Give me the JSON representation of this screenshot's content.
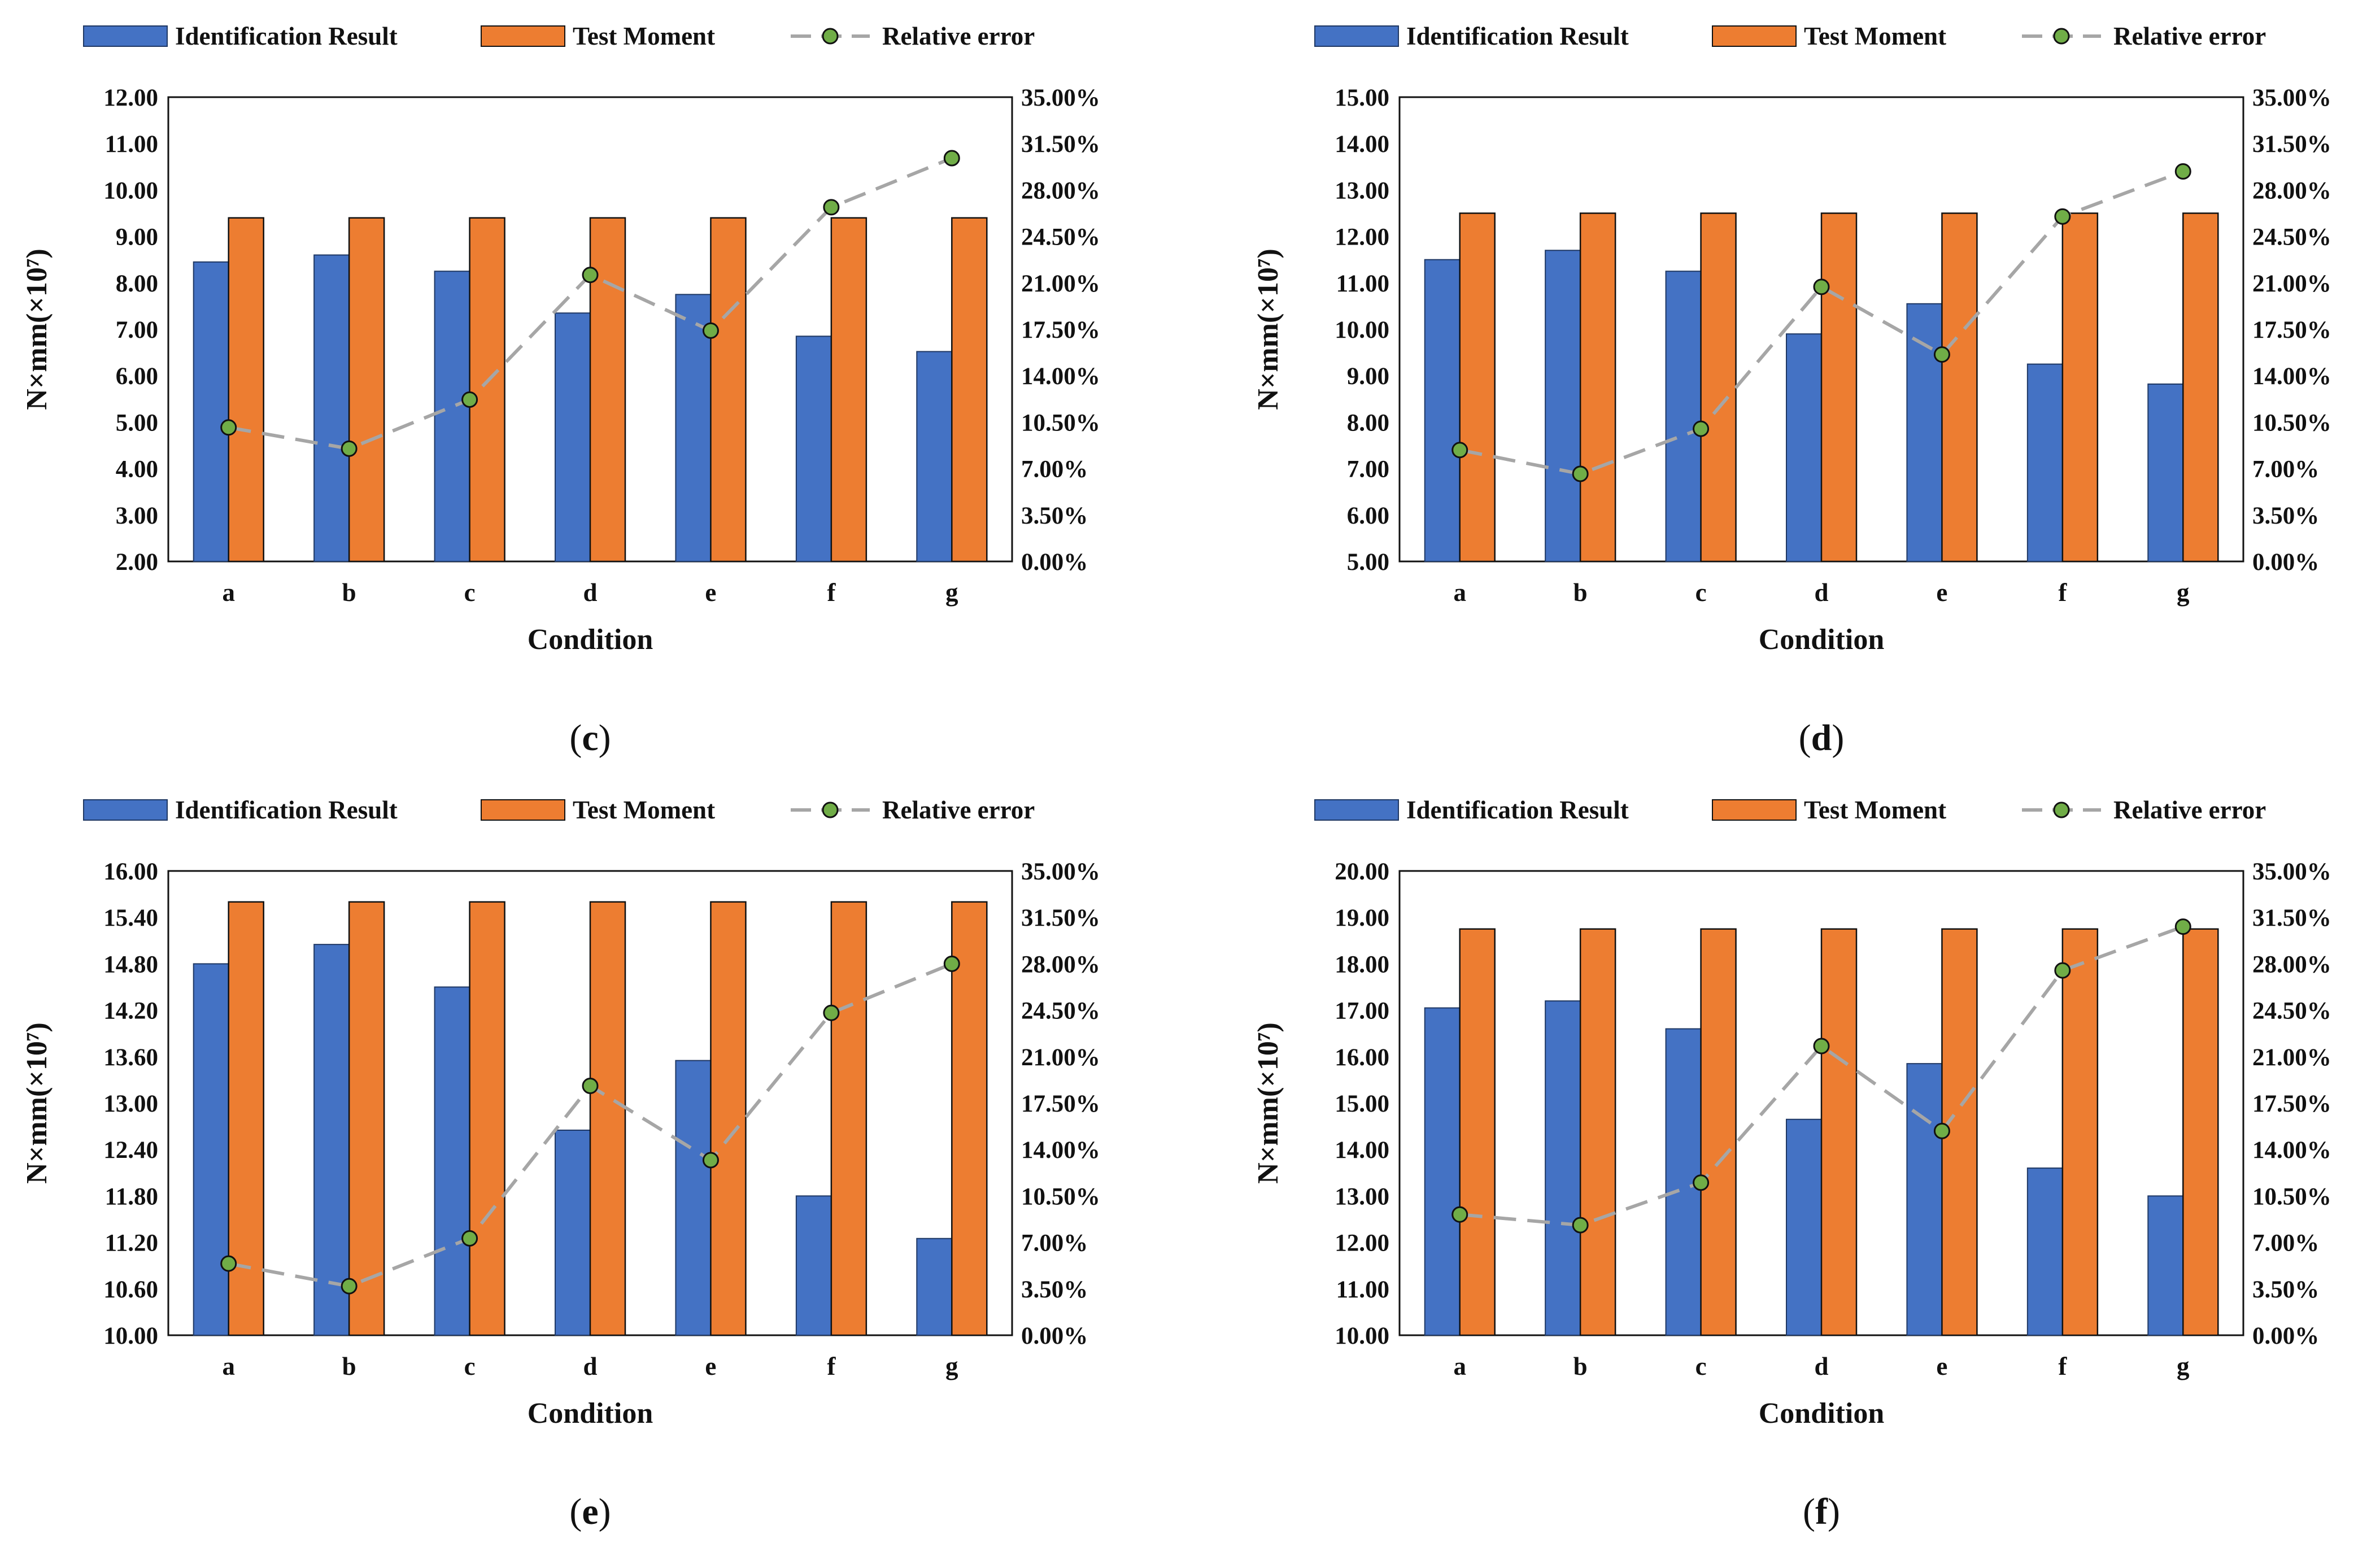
{
  "legend": {
    "series1": "Identification Result",
    "series2": "Test Moment",
    "series3": "Relative error"
  },
  "colors": {
    "identification": "#4472C4",
    "test": "#ED7D31",
    "error_line": "#A6A6A6",
    "error_marker": "#70AD47"
  },
  "chart_data": [
    {
      "type": "bar",
      "panel_label": "c",
      "categories": [
        "a",
        "b",
        "c",
        "d",
        "e",
        "f",
        "g"
      ],
      "series": [
        {
          "name": "Identification Result",
          "values": [
            8.45,
            8.6,
            8.25,
            7.35,
            7.75,
            6.85,
            6.52
          ]
        },
        {
          "name": "Test Moment",
          "values": [
            9.4,
            9.4,
            9.4,
            9.4,
            9.4,
            9.4,
            9.4
          ]
        },
        {
          "name": "Relative error",
          "type": "line",
          "axis": "right",
          "values": [
            10.1,
            8.5,
            12.2,
            21.6,
            17.4,
            26.7,
            30.4
          ]
        }
      ],
      "xlabel": "Condition",
      "ylabel": "N×mm(×10⁷)",
      "ylim": [
        2,
        12
      ],
      "yticks": [
        "12.00",
        "11.00",
        "10.00",
        "9.00",
        "8.00",
        "7.00",
        "6.00",
        "5.00",
        "4.00",
        "3.00",
        "2.00"
      ],
      "y2lim": [
        0,
        35
      ],
      "y2ticks": [
        "35.00%",
        "31.50%",
        "28.00%",
        "24.50%",
        "21.00%",
        "17.50%",
        "14.00%",
        "10.50%",
        "7.00%",
        "3.50%",
        "0.00%"
      ]
    },
    {
      "type": "bar",
      "panel_label": "d",
      "categories": [
        "a",
        "b",
        "c",
        "d",
        "e",
        "f",
        "g"
      ],
      "series": [
        {
          "name": "Identification Result",
          "values": [
            11.5,
            11.7,
            11.25,
            9.9,
            10.55,
            9.25,
            8.82
          ]
        },
        {
          "name": "Test Moment",
          "values": [
            12.5,
            12.5,
            12.5,
            12.5,
            12.5,
            12.5,
            12.5
          ]
        },
        {
          "name": "Relative error",
          "type": "line",
          "axis": "right",
          "values": [
            8.4,
            6.6,
            10.0,
            20.7,
            15.6,
            26.0,
            29.4
          ]
        }
      ],
      "xlabel": "Condition",
      "ylabel": "N×mm(×10⁷)",
      "ylim": [
        5,
        15
      ],
      "yticks": [
        "15.00",
        "14.00",
        "13.00",
        "12.00",
        "11.00",
        "10.00",
        "9.00",
        "8.00",
        "7.00",
        "6.00",
        "5.00"
      ],
      "y2lim": [
        0,
        35
      ],
      "y2ticks": [
        "35.00%",
        "31.50%",
        "28.00%",
        "24.50%",
        "21.00%",
        "17.50%",
        "14.00%",
        "10.50%",
        "7.00%",
        "3.50%",
        "0.00%"
      ]
    },
    {
      "type": "bar",
      "panel_label": "e",
      "categories": [
        "a",
        "b",
        "c",
        "d",
        "e",
        "f",
        "g"
      ],
      "series": [
        {
          "name": "Identification Result",
          "values": [
            14.8,
            15.05,
            14.5,
            12.65,
            13.55,
            11.8,
            11.25
          ]
        },
        {
          "name": "Test Moment",
          "values": [
            15.6,
            15.6,
            15.6,
            15.6,
            15.6,
            15.6,
            15.6
          ]
        },
        {
          "name": "Relative error",
          "type": "line",
          "axis": "right",
          "values": [
            5.4,
            3.7,
            7.3,
            18.8,
            13.2,
            24.3,
            28.0
          ]
        }
      ],
      "xlabel": "Condition",
      "ylabel": "N×mm(×10⁷)",
      "ylim": [
        10,
        16
      ],
      "yticks": [
        "16.00",
        "15.40",
        "14.80",
        "14.20",
        "13.60",
        "13.00",
        "12.40",
        "11.80",
        "11.20",
        "10.60",
        "10.00"
      ],
      "y2lim": [
        0,
        35
      ],
      "y2ticks": [
        "35.00%",
        "31.50%",
        "28.00%",
        "24.50%",
        "21.00%",
        "17.50%",
        "14.00%",
        "10.50%",
        "7.00%",
        "3.50%",
        "0.00%"
      ]
    },
    {
      "type": "bar",
      "panel_label": "f",
      "categories": [
        "a",
        "b",
        "c",
        "d",
        "e",
        "f",
        "g"
      ],
      "series": [
        {
          "name": "Identification Result",
          "values": [
            17.05,
            17.2,
            16.6,
            14.65,
            15.85,
            13.6,
            13.0
          ]
        },
        {
          "name": "Test Moment",
          "values": [
            18.75,
            18.75,
            18.75,
            18.75,
            18.75,
            18.75,
            18.75
          ]
        },
        {
          "name": "Relative error",
          "type": "line",
          "axis": "right",
          "values": [
            9.1,
            8.3,
            11.5,
            21.8,
            15.4,
            27.5,
            30.8
          ]
        }
      ],
      "xlabel": "Condition",
      "ylabel": "N×mm(×10⁷)",
      "ylim": [
        10,
        20
      ],
      "yticks": [
        "20.00",
        "19.00",
        "18.00",
        "17.00",
        "16.00",
        "15.00",
        "14.00",
        "13.00",
        "12.00",
        "11.00",
        "10.00"
      ],
      "y2lim": [
        0,
        35
      ],
      "y2ticks": [
        "35.00%",
        "31.50%",
        "28.00%",
        "24.50%",
        "21.00%",
        "17.50%",
        "14.00%",
        "10.50%",
        "7.00%",
        "3.50%",
        "0.00%"
      ]
    }
  ]
}
